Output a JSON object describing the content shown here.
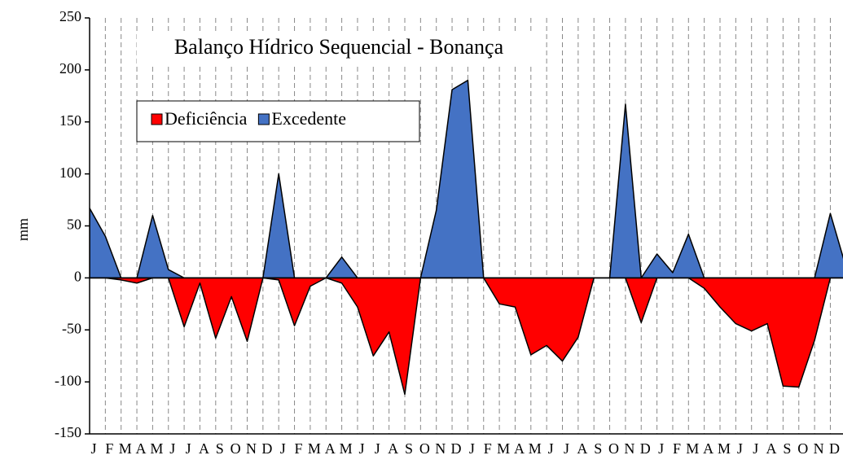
{
  "chart_data": {
    "type": "area",
    "title": "Balanço Hídrico Sequencial - Bonança",
    "y_label": "mm",
    "categories": [
      "J",
      "F",
      "M",
      "A",
      "M",
      "J",
      "J",
      "A",
      "S",
      "O",
      "N",
      "D",
      "J",
      "F",
      "M",
      "A",
      "M",
      "J",
      "J",
      "A",
      "S",
      "O",
      "N",
      "D",
      "J",
      "F",
      "M",
      "A",
      "M",
      "J",
      "J",
      "A",
      "S",
      "O",
      "N",
      "D",
      "J",
      "F",
      "M",
      "A",
      "M",
      "J",
      "J",
      "A",
      "S",
      "O",
      "N",
      "D",
      null
    ],
    "series": [
      {
        "name": "Deficiência",
        "color": "#ff0000",
        "values": [
          0,
          0,
          -2,
          -5,
          0,
          0,
          -47,
          -5,
          -58,
          -18,
          -61,
          0,
          -2,
          -46,
          -8,
          0,
          -5,
          -28,
          -75,
          -52,
          -112,
          0,
          0,
          0,
          0,
          0,
          -25,
          -28,
          -74,
          -65,
          -80,
          -57,
          0,
          0,
          0,
          -43,
          0,
          0,
          0,
          -10,
          -28,
          -44,
          -51,
          -44,
          -104,
          -105,
          -60,
          0,
          0
        ]
      },
      {
        "name": "Excedente",
        "color": "#4472c4",
        "values": [
          67,
          40,
          0,
          0,
          60,
          8,
          0,
          0,
          0,
          0,
          0,
          0,
          100,
          0,
          0,
          0,
          20,
          0,
          0,
          0,
          0,
          0,
          65,
          181,
          190,
          0,
          0,
          0,
          0,
          0,
          0,
          0,
          0,
          0,
          167,
          0,
          23,
          5,
          42,
          0,
          0,
          0,
          0,
          0,
          0,
          0,
          0,
          62,
          10
        ]
      }
    ],
    "xlim": [
      0,
      47.8
    ],
    "ylim": [
      -150,
      250
    ],
    "yticks": [
      -150,
      -100,
      -50,
      0,
      50,
      100,
      150,
      200,
      250
    ],
    "legend": "upper left"
  }
}
